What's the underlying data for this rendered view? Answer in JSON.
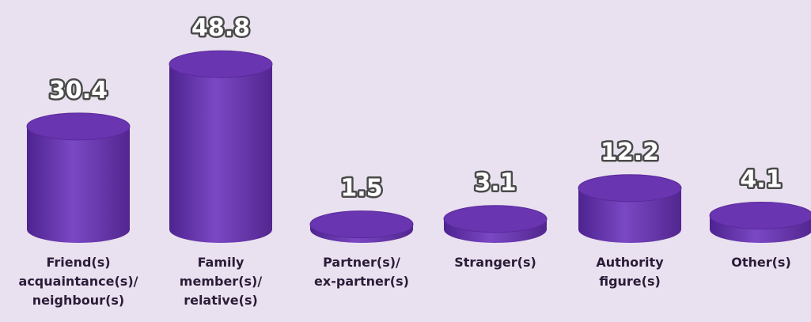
{
  "chart_data": {
    "type": "cylinder",
    "categories": [
      "Friend(s)\nacquaintance(s)/\nneighbour(s)",
      "Family\nmember(s)/\nrelative(s)",
      "Partner(s)/\nex-partner(s)",
      "Stranger(s)",
      "Authority\nfigure(s)",
      "Other(s)"
    ],
    "values": [
      30.4,
      48.8,
      1.5,
      3.1,
      12.2,
      4.1
    ],
    "color": "#6a35b0"
  }
}
